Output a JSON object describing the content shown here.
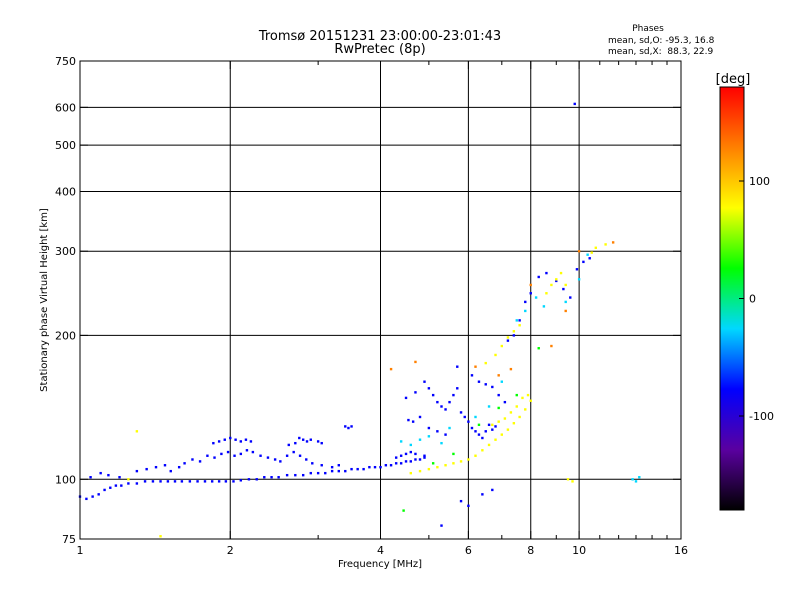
{
  "chart_data": {
    "type": "scatter",
    "title": "Tromsø 20151231 23:00:00-23:01:43",
    "subtitle": "RwPretec (8p)",
    "xlabel": "Frequency [MHz]",
    "ylabel": "Stationary phase Virtual Height [km]",
    "x_scale": "log2",
    "y_scale": "log",
    "xlim": [
      1,
      16
    ],
    "ylim": [
      75,
      750
    ],
    "x_ticks": [
      1,
      2,
      4,
      6,
      8,
      10,
      16
    ],
    "x_tick_labels": [
      "1",
      "2",
      "4",
      "6",
      "8",
      "10",
      "16"
    ],
    "x_minor_ticks": [
      3,
      5,
      7,
      9,
      11,
      12,
      13,
      14,
      15
    ],
    "y_ticks": [
      75,
      100,
      200,
      300,
      400,
      500,
      600,
      750
    ],
    "y_tick_labels": [
      "75",
      "100",
      "200",
      "300",
      "400",
      "500",
      "600",
      "750"
    ],
    "grid": true,
    "grid_x": [
      2,
      4,
      6,
      8,
      10
    ],
    "grid_y": [
      100,
      200,
      300,
      400,
      500,
      600
    ],
    "phases": {
      "title": "Phases",
      "o_line": "mean, sd,O: -95.3, 16.8",
      "x_line": "mean, sd,X:  88.3, 22.9"
    },
    "colorbar": {
      "label": "[deg]",
      "range": [
        -180,
        180
      ],
      "ticks": [
        100,
        0,
        -100
      ],
      "tick_labels": [
        "100",
        "0",
        "-100"
      ],
      "colors": [
        "#000000",
        "#5a00a0",
        "#0000ff",
        "#00d8ff",
        "#00ff00",
        "#ffff00",
        "#ff8000",
        "#ff0000"
      ]
    },
    "series": [
      {
        "name": "",
        "color": "#0000ff",
        "points": [
          [
            1.0,
            92
          ],
          [
            1.03,
            91
          ],
          [
            1.06,
            92
          ],
          [
            1.09,
            93
          ],
          [
            1.12,
            95
          ],
          [
            1.15,
            96
          ],
          [
            1.18,
            97
          ],
          [
            1.21,
            97
          ],
          [
            1.25,
            98
          ],
          [
            1.3,
            98
          ],
          [
            1.35,
            99
          ],
          [
            1.4,
            99
          ],
          [
            1.45,
            99
          ],
          [
            1.5,
            99
          ],
          [
            1.55,
            99
          ],
          [
            1.6,
            99
          ],
          [
            1.66,
            99
          ],
          [
            1.72,
            99
          ],
          [
            1.78,
            99
          ],
          [
            1.84,
            99
          ],
          [
            1.9,
            99
          ],
          [
            1.96,
            99
          ],
          [
            2.03,
            99
          ],
          [
            2.1,
            99.5
          ],
          [
            2.18,
            100
          ],
          [
            2.26,
            100
          ],
          [
            2.34,
            101
          ],
          [
            2.42,
            101
          ],
          [
            2.5,
            101
          ],
          [
            2.6,
            102
          ],
          [
            2.7,
            102
          ],
          [
            2.8,
            102
          ],
          [
            2.9,
            103
          ],
          [
            3.0,
            103
          ],
          [
            3.1,
            103
          ],
          [
            3.2,
            104
          ],
          [
            3.3,
            104
          ],
          [
            3.4,
            104
          ],
          [
            3.5,
            105
          ],
          [
            3.6,
            105
          ],
          [
            3.7,
            105
          ],
          [
            3.8,
            106
          ],
          [
            3.9,
            106
          ],
          [
            4.0,
            106
          ],
          [
            4.1,
            107
          ],
          [
            4.2,
            107
          ],
          [
            4.3,
            108
          ],
          [
            4.4,
            108
          ],
          [
            4.5,
            109
          ],
          [
            4.6,
            109
          ],
          [
            4.7,
            110
          ],
          [
            4.8,
            110
          ],
          [
            4.9,
            111
          ],
          [
            1.05,
            101
          ],
          [
            1.1,
            103
          ],
          [
            1.14,
            102
          ],
          [
            1.2,
            101
          ],
          [
            1.3,
            104
          ],
          [
            1.36,
            105
          ],
          [
            1.42,
            106
          ],
          [
            1.48,
            107
          ],
          [
            1.52,
            104
          ],
          [
            1.58,
            106
          ],
          [
            1.62,
            108
          ],
          [
            1.68,
            110
          ],
          [
            1.74,
            109
          ],
          [
            1.8,
            112
          ],
          [
            1.86,
            111
          ],
          [
            1.92,
            113
          ],
          [
            1.98,
            114
          ],
          [
            2.04,
            112
          ],
          [
            2.1,
            113
          ],
          [
            2.16,
            115
          ],
          [
            2.22,
            114
          ],
          [
            2.3,
            112
          ],
          [
            2.38,
            111
          ],
          [
            2.46,
            110
          ],
          [
            2.52,
            109
          ],
          [
            2.6,
            112
          ],
          [
            2.68,
            114
          ],
          [
            2.76,
            112
          ],
          [
            2.84,
            110
          ],
          [
            2.92,
            108
          ],
          [
            3.05,
            107
          ],
          [
            3.2,
            106
          ],
          [
            3.3,
            107
          ],
          [
            1.85,
            119
          ],
          [
            1.9,
            120
          ],
          [
            1.95,
            121
          ],
          [
            2.0,
            122
          ],
          [
            2.05,
            121
          ],
          [
            2.1,
            120
          ],
          [
            2.15,
            121
          ],
          [
            2.2,
            120
          ],
          [
            2.62,
            118
          ],
          [
            2.7,
            119
          ],
          [
            2.8,
            121
          ],
          [
            2.9,
            121
          ],
          [
            3.0,
            120
          ],
          [
            3.05,
            119
          ],
          [
            2.75,
            122
          ],
          [
            2.85,
            120
          ],
          [
            3.4,
            129
          ],
          [
            3.45,
            128
          ],
          [
            3.5,
            129
          ],
          [
            4.3,
            111
          ],
          [
            4.4,
            112
          ],
          [
            4.5,
            113
          ],
          [
            4.6,
            114
          ],
          [
            4.7,
            113
          ],
          [
            4.9,
            112
          ],
          [
            4.5,
            148
          ],
          [
            4.7,
            152
          ],
          [
            4.9,
            160
          ],
          [
            5.0,
            155
          ],
          [
            5.1,
            150
          ],
          [
            5.2,
            145
          ],
          [
            5.3,
            142
          ],
          [
            5.4,
            140
          ],
          [
            5.5,
            145
          ],
          [
            5.6,
            150
          ],
          [
            5.7,
            155
          ],
          [
            5.8,
            138
          ],
          [
            5.9,
            135
          ],
          [
            6.0,
            132
          ],
          [
            6.1,
            128
          ],
          [
            6.2,
            126
          ],
          [
            6.3,
            124
          ],
          [
            6.4,
            122
          ],
          [
            6.5,
            126
          ],
          [
            6.6,
            130
          ],
          [
            6.7,
            127
          ],
          [
            6.8,
            129
          ],
          [
            5.7,
            172
          ],
          [
            6.1,
            165
          ],
          [
            6.3,
            160
          ],
          [
            6.5,
            158
          ],
          [
            6.7,
            156
          ],
          [
            6.9,
            150
          ],
          [
            7.1,
            145
          ],
          [
            4.55,
            133
          ],
          [
            4.65,
            132
          ],
          [
            4.8,
            135
          ],
          [
            5.0,
            128
          ],
          [
            5.2,
            126
          ],
          [
            5.4,
            124
          ],
          [
            5.3,
            80
          ],
          [
            6.0,
            88
          ],
          [
            6.7,
            95
          ],
          [
            5.8,
            90
          ],
          [
            6.4,
            93
          ],
          [
            7.2,
            195
          ],
          [
            7.4,
            200
          ],
          [
            7.6,
            215
          ],
          [
            7.8,
            235
          ],
          [
            8.0,
            245
          ],
          [
            8.3,
            265
          ],
          [
            8.6,
            270
          ],
          [
            9.0,
            260
          ],
          [
            9.3,
            250
          ],
          [
            9.6,
            240
          ],
          [
            9.9,
            275
          ],
          [
            10.2,
            285
          ],
          [
            10.5,
            290
          ],
          [
            9.8,
            610
          ]
        ]
      },
      {
        "name": "",
        "color": "#ffff00",
        "points": [
          [
            4.6,
            103
          ],
          [
            4.8,
            104
          ],
          [
            5.0,
            105
          ],
          [
            5.2,
            106
          ],
          [
            5.4,
            107
          ],
          [
            5.6,
            108
          ],
          [
            5.8,
            109
          ],
          [
            6.0,
            110
          ],
          [
            6.2,
            112
          ],
          [
            6.4,
            115
          ],
          [
            6.6,
            118
          ],
          [
            6.8,
            121
          ],
          [
            7.0,
            124
          ],
          [
            7.2,
            127
          ],
          [
            7.4,
            131
          ],
          [
            7.6,
            135
          ],
          [
            7.8,
            140
          ],
          [
            8.0,
            146
          ],
          [
            7.9,
            150
          ],
          [
            7.7,
            148
          ],
          [
            7.5,
            142
          ],
          [
            7.3,
            138
          ],
          [
            7.1,
            134
          ],
          [
            6.9,
            132
          ],
          [
            6.7,
            130
          ],
          [
            6.5,
            175
          ],
          [
            6.8,
            182
          ],
          [
            7.0,
            190
          ],
          [
            7.2,
            198
          ],
          [
            7.4,
            204
          ],
          [
            7.6,
            210
          ],
          [
            8.6,
            245
          ],
          [
            8.8,
            255
          ],
          [
            9.0,
            262
          ],
          [
            9.2,
            270
          ],
          [
            9.4,
            255
          ],
          [
            10.6,
            298
          ],
          [
            10.8,
            305
          ],
          [
            11.3,
            310
          ],
          [
            1.3,
            126
          ],
          [
            1.25,
            100
          ],
          [
            1.45,
            76
          ],
          [
            9.5,
            100
          ],
          [
            9.7,
            99
          ]
        ]
      },
      {
        "name": "",
        "color": "#00d8ff",
        "points": [
          [
            4.4,
            120
          ],
          [
            4.6,
            118
          ],
          [
            4.8,
            121
          ],
          [
            5.0,
            123
          ],
          [
            5.3,
            119
          ],
          [
            5.5,
            128
          ],
          [
            6.2,
            135
          ],
          [
            6.6,
            142
          ],
          [
            7.0,
            160
          ],
          [
            7.5,
            215
          ],
          [
            7.8,
            225
          ],
          [
            8.2,
            240
          ],
          [
            8.5,
            230
          ],
          [
            9.4,
            235
          ],
          [
            10.0,
            262
          ],
          [
            10.4,
            295
          ],
          [
            12.8,
            100
          ],
          [
            13.0,
            99
          ],
          [
            13.2,
            101
          ]
        ]
      },
      {
        "name": "",
        "color": "#ff8000",
        "points": [
          [
            4.2,
            170
          ],
          [
            4.7,
            176
          ],
          [
            6.2,
            172
          ],
          [
            6.9,
            165
          ],
          [
            7.3,
            170
          ],
          [
            8.8,
            190
          ],
          [
            9.4,
            225
          ],
          [
            10.0,
            300
          ],
          [
            11.7,
            313
          ],
          [
            8.0,
            255
          ]
        ]
      },
      {
        "name": "",
        "color": "#00ff00",
        "points": [
          [
            4.45,
            86
          ],
          [
            5.1,
            108
          ],
          [
            5.6,
            113
          ],
          [
            6.3,
            130
          ],
          [
            6.9,
            141
          ],
          [
            7.5,
            150
          ],
          [
            8.3,
            188
          ]
        ]
      }
    ]
  }
}
